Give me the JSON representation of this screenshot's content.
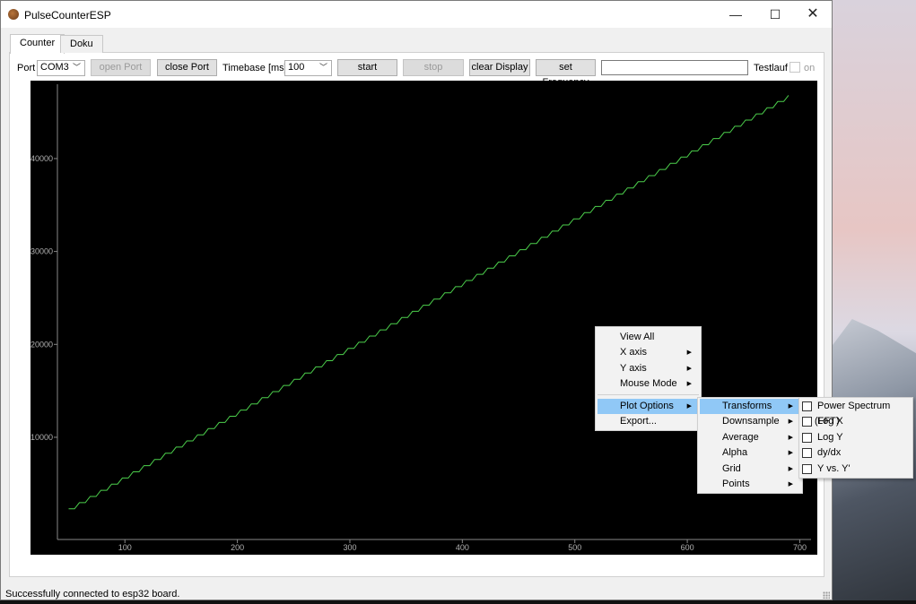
{
  "window": {
    "title": "PulseCounterESP",
    "btn_min": "—",
    "btn_max": "☐",
    "btn_close": "✕"
  },
  "tabs": [
    "Counter",
    "Doku"
  ],
  "toolbar": {
    "port_label": "Port",
    "port_value": "COM3",
    "open_port": "open Port",
    "close_port": "close Port",
    "timebase_label": "Timebase [ms]",
    "timebase_value": "100",
    "start": "start",
    "stop": "stop",
    "clear_display": "clear Display",
    "set_frequency": "set Frequency",
    "frequency_value": "",
    "testlauf_label": "Testlauf",
    "testlauf_option": "on"
  },
  "chart_data": {
    "type": "line",
    "xlim": [
      40,
      710
    ],
    "ylim": [
      -1000,
      48000
    ],
    "x_ticks": [
      100,
      200,
      300,
      400,
      500,
      600,
      700
    ],
    "y_ticks": [
      10000,
      20000,
      30000,
      40000
    ],
    "series": [
      {
        "color": "#4ccf4c",
        "x_start": 50,
        "x_end": 690,
        "y_start": 2300,
        "y_end": 46800,
        "step_count": 67,
        "style": "staircase"
      }
    ]
  },
  "context_menu": {
    "items": [
      "View All",
      "X axis",
      "Y axis",
      "Mouse Mode",
      "Plot Options",
      "Export..."
    ],
    "submenu": [
      "Transforms",
      "Downsample",
      "Average",
      "Alpha",
      "Grid",
      "Points"
    ],
    "transforms": [
      "Power Spectrum (FFT)",
      "Log X",
      "Log Y",
      "dy/dx",
      "Y vs. Y'"
    ]
  },
  "status": "Successfully connected to esp32 board."
}
